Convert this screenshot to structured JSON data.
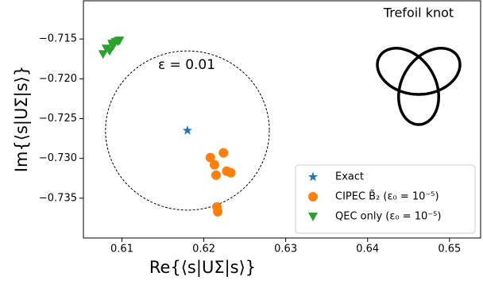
{
  "chart_data": {
    "type": "scatter",
    "xlabel": "Re{⟨s|UΣ|s⟩}",
    "ylabel": "Im{⟨s|UΣ|s⟩}",
    "annotation": {
      "text": "ε = 0.01",
      "radius": 0.01
    },
    "inset_title": "Trefoil knot",
    "xlim": [
      0.6053,
      0.6538
    ],
    "ylim": [
      -0.74,
      -0.7102
    ],
    "xticks": [
      0.61,
      0.62,
      0.63,
      0.64,
      0.65
    ],
    "yticks": [
      {
        "value": -0.715,
        "label": "−0.715"
      },
      {
        "value": -0.72,
        "label": "−0.720"
      },
      {
        "value": -0.725,
        "label": "−0.725"
      },
      {
        "value": -0.73,
        "label": "−0.730"
      },
      {
        "value": -0.735,
        "label": "−0.735"
      }
    ],
    "legend": "lower right",
    "series": [
      {
        "name": "Exact",
        "color": "#1f77b4",
        "marker": "star",
        "x": [
          0.618
        ],
        "values": [
          -0.7265
        ]
      },
      {
        "name": "CIPEC B̃₂ (ε₀ = 10⁻⁵)",
        "color": "#ff7f0e",
        "marker": "circle",
        "x": [
          0.6208,
          0.6224,
          0.6213,
          0.6228,
          0.6233,
          0.6215,
          0.6216,
          0.6217
        ],
        "values": [
          -0.7299,
          -0.7293,
          -0.7308,
          -0.7316,
          -0.7318,
          -0.7321,
          -0.7361,
          -0.7367
        ]
      },
      {
        "name": "QEC only (ε₀ = 10⁻⁵)",
        "color": "#2ca02c",
        "marker": "triangle",
        "x": [
          0.6077,
          0.6081,
          0.6085,
          0.6089,
          0.6092,
          0.6095,
          0.6097,
          0.6088
        ],
        "values": [
          -0.7169,
          -0.7162,
          -0.7165,
          -0.7159,
          -0.7154,
          -0.7153,
          -0.7152,
          -0.7156
        ]
      }
    ]
  }
}
